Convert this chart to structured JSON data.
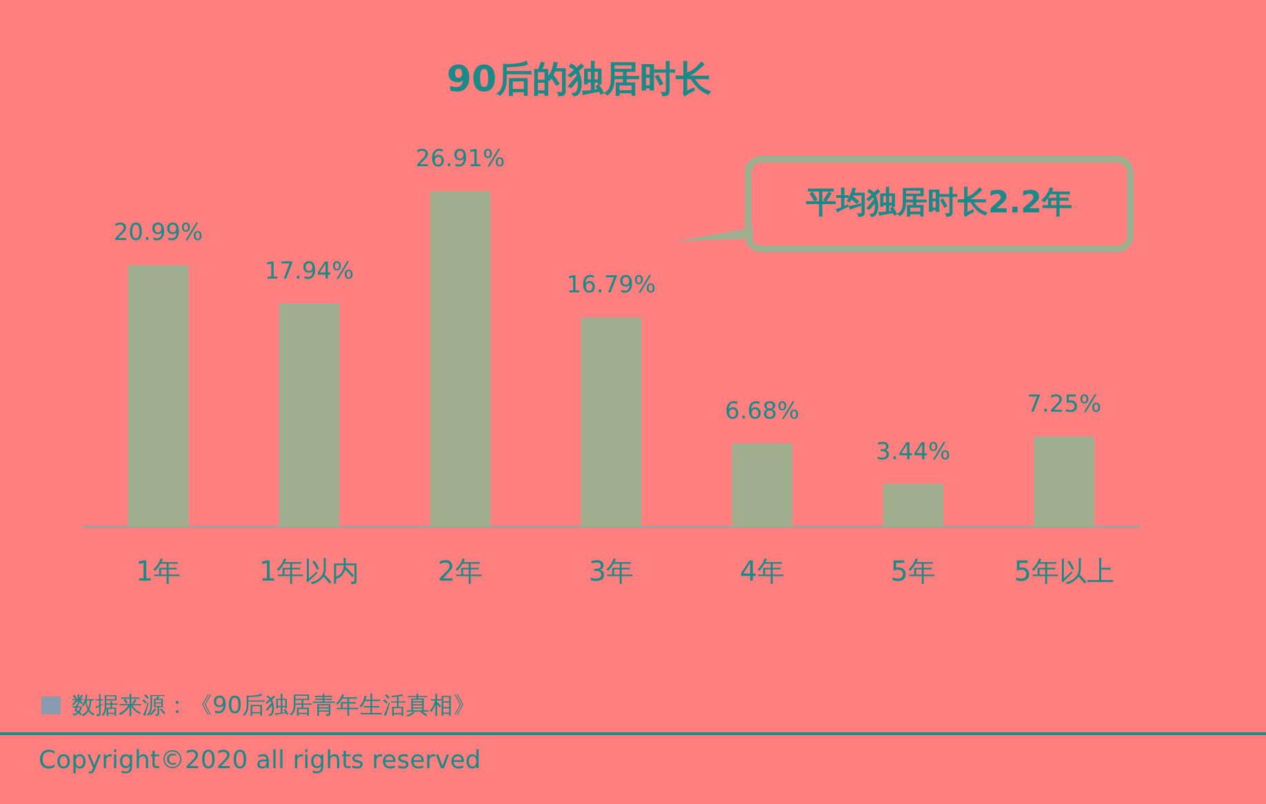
{
  "chart_data": {
    "type": "bar",
    "title": "90后的独居时长",
    "categories": [
      "1年",
      "1年以内",
      "2年",
      "3年",
      "4年",
      "5年",
      "5年以上"
    ],
    "values": [
      20.99,
      17.94,
      26.91,
      16.79,
      6.68,
      3.44,
      7.25
    ],
    "value_labels": [
      "20.99%",
      "17.94%",
      "26.91%",
      "16.79%",
      "6.68%",
      "3.44%",
      "7.25%"
    ],
    "color": "#9eae8e",
    "annotations": [
      "平均独居时长2.2年",
      "数据来源：《90后独居青年生活真相》",
      "Copyright©2020 all rights reserved"
    ],
    "grid": false,
    "legend": false
  }
}
